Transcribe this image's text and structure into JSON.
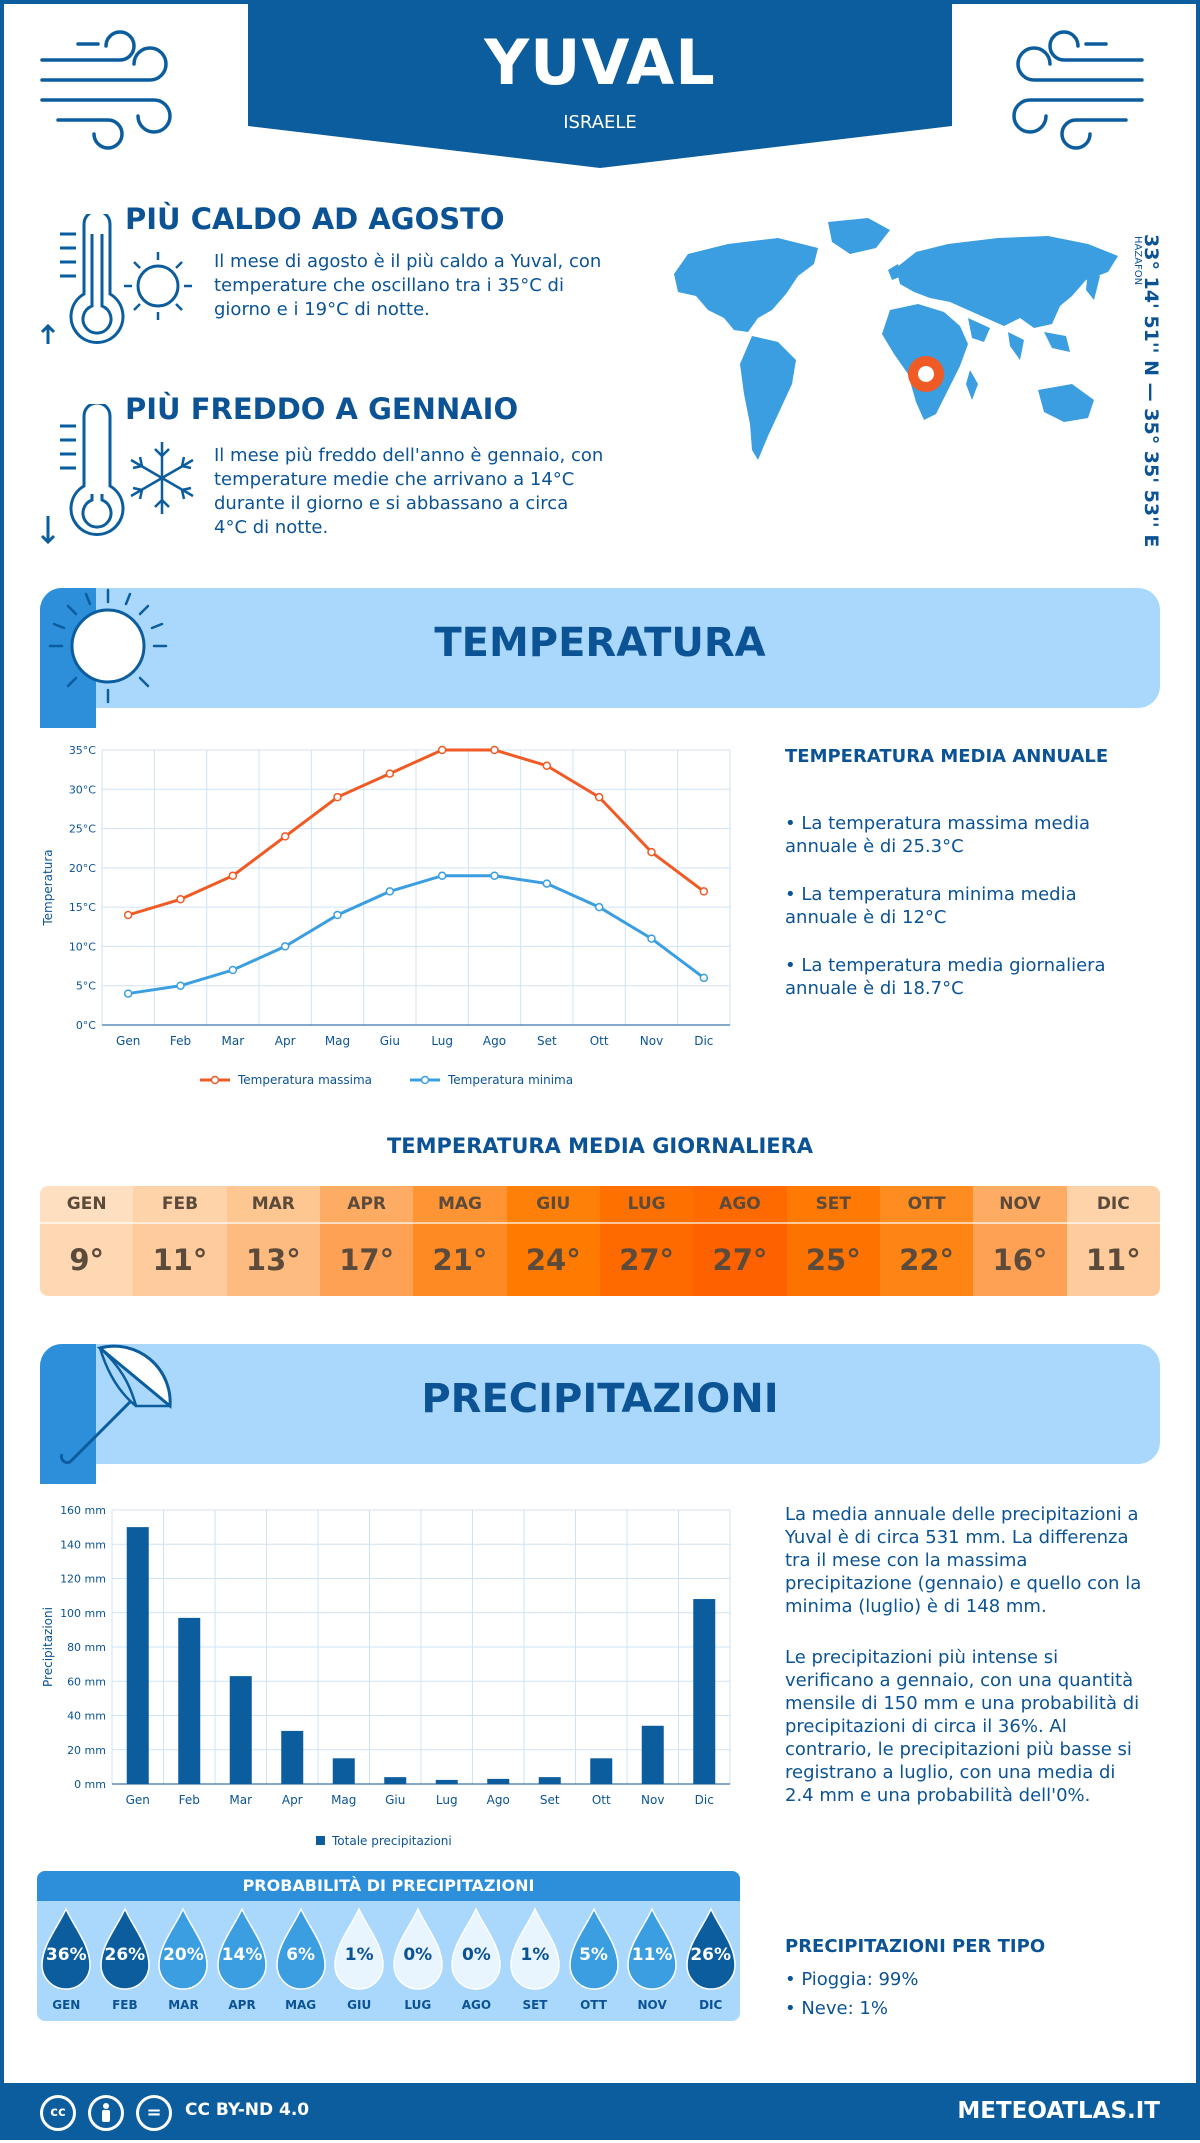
{
  "header": {
    "city": "YUVAL",
    "country": "ISRAELE"
  },
  "facts": {
    "hot": {
      "title": "PIÙ CALDO AD AGOSTO",
      "text": "Il mese di agosto è il più caldo a Yuval, con temperature che oscillano tra i 35°C di giorno e i 19°C di notte."
    },
    "cold": {
      "title": "PIÙ FREDDO A GENNAIO",
      "text": "Il mese più freddo dell'anno è gennaio, con temperature medie che arrivano a 14°C durante il giorno e si abbassano a circa 4°C di notte."
    }
  },
  "coords": {
    "text": "33° 14' 51'' N — 35° 35' 53'' E",
    "region": "HAZAFON"
  },
  "temperature_section": {
    "title": "TEMPERATURA",
    "side_title": "TEMPERATURA MEDIA ANNUALE",
    "bullets": [
      "• La temperatura massima media annuale è di 25.3°C",
      "• La temperatura minima media annuale è di 12°C",
      "• La temperatura media giornaliera annuale è di 18.7°C"
    ]
  },
  "daily": {
    "title": "TEMPERATURA MEDIA GIORNALIERA",
    "months": [
      "GEN",
      "FEB",
      "MAR",
      "APR",
      "MAG",
      "GIU",
      "LUG",
      "AGO",
      "SET",
      "OTT",
      "NOV",
      "DIC"
    ],
    "values": [
      "9°",
      "11°",
      "13°",
      "17°",
      "21°",
      "24°",
      "27°",
      "27°",
      "25°",
      "22°",
      "16°",
      "11°"
    ],
    "header_colors": [
      "#fee0c0",
      "#fed3aa",
      "#fec690",
      "#feac64",
      "#fe9433",
      "#fe8008",
      "#fe7000",
      "#fe6a00",
      "#fe7a04",
      "#fe8c20",
      "#feac64",
      "#fed3aa"
    ],
    "value_colors": [
      "#fed8b2",
      "#fecb9c",
      "#febb80",
      "#fea154",
      "#fe8a24",
      "#fe7a00",
      "#fe6a00",
      "#fe6200",
      "#fe7200",
      "#fe8414",
      "#fea154",
      "#fecb9c"
    ]
  },
  "precip_section": {
    "title": "PRECIPITAZIONI",
    "paragraph1": "La media annuale delle precipitazioni a Yuval è di circa 531 mm. La differenza tra il mese con la massima precipitazione (gennaio) e quello con la minima (luglio) è di 148 mm.",
    "paragraph2": "Le precipitazioni più intense si verificano a gennaio, con una quantità mensile di 150 mm e una probabilità di precipitazioni di circa il 36%. Al contrario, le precipitazioni più basse si registrano a luglio, con una media di 2.4 mm e una probabilità dell'0%.",
    "type_title": "PRECIPITAZIONI PER TIPO",
    "types": [
      "• Pioggia: 99%",
      "• Neve: 1%"
    ]
  },
  "probability": {
    "title": "PROBABILITÀ DI PRECIPITAZIONI",
    "months": [
      "GEN",
      "FEB",
      "MAR",
      "APR",
      "MAG",
      "GIU",
      "LUG",
      "AGO",
      "SET",
      "OTT",
      "NOV",
      "DIC"
    ],
    "labels": [
      "36%",
      "26%",
      "20%",
      "14%",
      "6%",
      "1%",
      "0%",
      "0%",
      "1%",
      "5%",
      "11%",
      "26%"
    ],
    "values": [
      36,
      26,
      20,
      14,
      6,
      1,
      0,
      0,
      1,
      5,
      11,
      26
    ]
  },
  "footer": {
    "license": "CC BY-ND 4.0",
    "brand": "METEOATLAS.IT",
    "cc1": "cc",
    "cc3": "="
  },
  "chart_data": [
    {
      "type": "line",
      "categories": [
        "Gen",
        "Feb",
        "Mar",
        "Apr",
        "Mag",
        "Giu",
        "Lug",
        "Ago",
        "Set",
        "Ott",
        "Nov",
        "Dic"
      ],
      "series": [
        {
          "name": "Temperatura massima",
          "values": [
            14,
            16,
            19,
            24,
            29,
            32,
            35,
            35,
            33,
            29,
            22,
            17
          ],
          "color": "#f05a24"
        },
        {
          "name": "Temperatura minima",
          "values": [
            4,
            5,
            7,
            10,
            14,
            17,
            19,
            19,
            18,
            15,
            11,
            6
          ],
          "color": "#3a9ee0"
        }
      ],
      "ylabel": "Temperatura",
      "ylim": [
        0,
        35
      ],
      "yticks": [
        "0°C",
        "5°C",
        "10°C",
        "15°C",
        "20°C",
        "25°C",
        "30°C",
        "35°C"
      ],
      "grid": true,
      "legend": "bottom"
    },
    {
      "type": "bar",
      "categories": [
        "Gen",
        "Feb",
        "Mar",
        "Apr",
        "Mag",
        "Giu",
        "Lug",
        "Ago",
        "Set",
        "Ott",
        "Nov",
        "Dic"
      ],
      "series": [
        {
          "name": "Totale precipitazioni",
          "values": [
            150,
            97,
            63,
            31,
            15,
            4,
            2.4,
            3,
            4,
            15,
            34,
            108
          ],
          "color": "#0b5d9e"
        }
      ],
      "ylabel": "Precipitazioni",
      "ylim": [
        0,
        160
      ],
      "yticks": [
        "0 mm",
        "20 mm",
        "40 mm",
        "60 mm",
        "80 mm",
        "100 mm",
        "120 mm",
        "140 mm",
        "160 mm"
      ],
      "grid": true,
      "legend": "bottom"
    }
  ]
}
